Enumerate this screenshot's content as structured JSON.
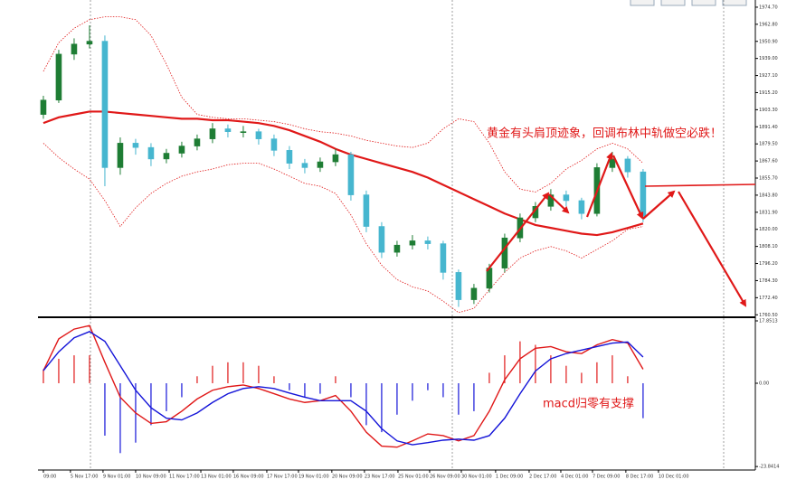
{
  "chart_data": [
    {
      "type": "candlestick",
      "annotation": "黄金有头肩顶迹象，回调布林中轨做空必跌！",
      "open": [
        1900,
        1910,
        1942,
        1949,
        1951,
        1863,
        1880,
        1877,
        1869,
        1873,
        1878,
        1883,
        1890,
        1888,
        1888,
        1883,
        1875,
        1866,
        1863,
        1867,
        1872,
        1844,
        1822,
        1804,
        1809,
        1812,
        1810,
        1790,
        1771,
        1779,
        1793,
        1814,
        1828,
        1836,
        1844,
        1840,
        1831,
        1863,
        1869,
        1860
      ],
      "high": [
        1913,
        1945,
        1953,
        1962,
        1955,
        1884,
        1883,
        1880,
        1876,
        1881,
        1886,
        1894,
        1893,
        1892,
        1890,
        1886,
        1878,
        1869,
        1870,
        1876,
        1874,
        1847,
        1825,
        1812,
        1816,
        1815,
        1812,
        1792,
        1782,
        1796,
        1817,
        1831,
        1839,
        1848,
        1847,
        1842,
        1866,
        1874,
        1871,
        1862
      ],
      "low": [
        1897,
        1908,
        1938,
        1946,
        1850,
        1858,
        1872,
        1864,
        1866,
        1870,
        1875,
        1880,
        1884,
        1884,
        1879,
        1871,
        1862,
        1859,
        1860,
        1864,
        1840,
        1818,
        1800,
        1801,
        1806,
        1806,
        1785,
        1766,
        1768,
        1776,
        1790,
        1811,
        1825,
        1833,
        1836,
        1827,
        1829,
        1860,
        1856,
        1825
      ],
      "close": [
        1910,
        1942,
        1949,
        1951,
        1863,
        1880,
        1877,
        1869,
        1873,
        1878,
        1883,
        1890,
        1888,
        1888,
        1883,
        1875,
        1866,
        1863,
        1867,
        1872,
        1844,
        1822,
        1804,
        1809,
        1812,
        1810,
        1790,
        1771,
        1779,
        1793,
        1814,
        1828,
        1836,
        1844,
        1840,
        1831,
        1863,
        1869,
        1860,
        1829
      ],
      "up_color": "#1e7d34",
      "down_color": "#46b6cf",
      "overlays": [
        {
          "color": "#e01818",
          "style": "solid",
          "values": [
            1894,
            1898,
            1900,
            1902,
            1902,
            1901,
            1900,
            1899,
            1898,
            1897,
            1897,
            1896,
            1896,
            1895,
            1894,
            1892,
            1889,
            1885,
            1881,
            1876,
            1872,
            1869,
            1866,
            1863,
            1860,
            1856,
            1851,
            1846,
            1841,
            1836,
            1831,
            1827,
            1823,
            1821,
            1819,
            1817,
            1816,
            1818,
            1821,
            1824
          ]
        },
        {
          "color": "#e01818",
          "style": "dotted",
          "values": [
            1930,
            1950,
            1960,
            1966,
            1968,
            1968,
            1966,
            1955,
            1935,
            1912,
            1900,
            1898,
            1897,
            1897,
            1896,
            1895,
            1893,
            1890,
            1888,
            1887,
            1885,
            1882,
            1880,
            1878,
            1877,
            1880,
            1890,
            1897,
            1895,
            1880,
            1860,
            1848,
            1846,
            1852,
            1862,
            1868,
            1876,
            1880,
            1876,
            1866
          ]
        },
        {
          "color": "#e01818",
          "style": "dotted",
          "values": [
            1880,
            1870,
            1862,
            1855,
            1840,
            1822,
            1835,
            1845,
            1852,
            1857,
            1860,
            1862,
            1865,
            1866,
            1866,
            1862,
            1857,
            1852,
            1850,
            1845,
            1830,
            1810,
            1795,
            1785,
            1780,
            1777,
            1770,
            1762,
            1765,
            1778,
            1790,
            1800,
            1805,
            1808,
            1805,
            1800,
            1806,
            1812,
            1820,
            1822
          ]
        }
      ],
      "xlim": [
        -0.35,
        46.3
      ],
      "ylim": [
        1759.4,
        1979.7
      ],
      "yticks": [
        {
          "value": 1974.7,
          "label": "1974.70"
        },
        {
          "value": 1962.8,
          "label": "1962.80"
        },
        {
          "value": 1950.9,
          "label": "1950.90"
        },
        {
          "value": 1939,
          "label": "1939.00"
        },
        {
          "value": 1927.1,
          "label": "1927.10"
        },
        {
          "value": 1915.2,
          "label": "1915.20"
        },
        {
          "value": 1903.3,
          "label": "1903.30"
        },
        {
          "value": 1891.4,
          "label": "1891.40"
        },
        {
          "value": 1879.5,
          "label": "1879.50"
        },
        {
          "value": 1867.6,
          "label": "1867.60"
        },
        {
          "value": 1855.7,
          "label": "1855.70"
        },
        {
          "value": 1843.8,
          "label": "1843.80"
        },
        {
          "value": 1831.9,
          "label": "1831.90"
        },
        {
          "value": 1820,
          "label": "1820.00"
        },
        {
          "value": 1808.1,
          "label": "1808.10"
        },
        {
          "value": 1796.2,
          "label": "1796.20"
        },
        {
          "value": 1784.3,
          "label": "1784.30"
        },
        {
          "value": 1772.4,
          "label": "1772.40"
        },
        {
          "value": 1760.5,
          "label": "1760.50"
        }
      ]
    },
    {
      "type": "macd",
      "annotation": "macd归零有支撑",
      "series": [
        {
          "color": "#e01818",
          "values": [
            3.6,
            12.7,
            15.5,
            16.5,
            6,
            -4,
            -8.5,
            -11.5,
            -11,
            -8,
            -4.5,
            -2,
            -1,
            -0.5,
            -1.5,
            -3,
            -4.5,
            -5.5,
            -5,
            -3.5,
            -8,
            -14,
            -18,
            -18.3,
            -16.5,
            -14.5,
            -15,
            -16.5,
            -15,
            -8,
            1,
            7,
            10,
            10.5,
            9,
            8.5,
            11,
            12.5,
            11.5,
            4
          ]
        },
        {
          "color": "#1414d8",
          "values": [
            3.6,
            9,
            13,
            14.8,
            12,
            5,
            -2,
            -7,
            -10,
            -10.5,
            -8.5,
            -5.5,
            -3,
            -1.5,
            -1,
            -1.5,
            -2.8,
            -4,
            -5,
            -5,
            -5,
            -8,
            -13,
            -16.5,
            -17.6,
            -17,
            -16.3,
            -16,
            -16.3,
            -15,
            -10,
            -3,
            3.5,
            7,
            8.5,
            9.5,
            10.5,
            11.5,
            11.8,
            7.5
          ]
        }
      ],
      "histogram": {
        "values": [
          4,
          7,
          8,
          8,
          -15,
          -20,
          -17,
          -12,
          -8,
          -4,
          2,
          5,
          6,
          6,
          5,
          2,
          -2,
          -4,
          -3,
          2,
          -4,
          -12,
          -14,
          -9,
          -5,
          -2,
          -4,
          -9,
          -8,
          3,
          8,
          12,
          11,
          8,
          5,
          3,
          6,
          8,
          2,
          -10
        ],
        "up_color": "#e01818",
        "down_color": "#1414d8"
      },
      "xlim": [
        -0.35,
        46.3
      ],
      "ylim": [
        -24.84,
        18.63
      ],
      "yticks": [
        {
          "value": 17.8513,
          "label": "17.8513"
        },
        {
          "value": 0,
          "label": "0.00"
        },
        {
          "value": -23.8414,
          "label": "-23.8414"
        }
      ],
      "xticks": [
        {
          "value": 0,
          "label": "09:00"
        },
        {
          "value": 1.76,
          "label": "5 Nov 17:00"
        },
        {
          "value": 3.88,
          "label": "9 Nov 01:00"
        },
        {
          "value": 6,
          "label": "10 Nov 09:00"
        },
        {
          "value": 8.18,
          "label": "11 Nov 17:00"
        },
        {
          "value": 10.24,
          "label": "13 Nov 01:00"
        },
        {
          "value": 12.35,
          "label": "16 Nov 09:00"
        },
        {
          "value": 14.53,
          "label": "17 Nov 17:00"
        },
        {
          "value": 16.59,
          "label": "19 Nov 01:00"
        },
        {
          "value": 18.76,
          "label": "20 Nov 09:00"
        },
        {
          "value": 20.88,
          "label": "23 Nov 17:00"
        },
        {
          "value": 23.06,
          "label": "25 Nov 01:00"
        },
        {
          "value": 25.12,
          "label": "26 Nov 09:00"
        },
        {
          "value": 27.18,
          "label": "30 Nov 01:00"
        },
        {
          "value": 29.41,
          "label": "1 Dec 09:00"
        },
        {
          "value": 31.59,
          "label": "2 Dec 17:00"
        },
        {
          "value": 33.65,
          "label": "4 Dec 01:00"
        },
        {
          "value": 35.71,
          "label": "7 Dec 09:00"
        },
        {
          "value": 37.88,
          "label": "8 Dec 17:00"
        },
        {
          "value": 40,
          "label": "10 Dec 01:00"
        }
      ]
    }
  ]
}
